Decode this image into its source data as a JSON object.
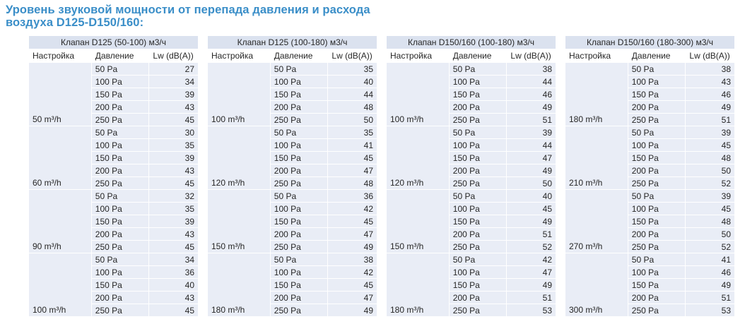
{
  "page": {
    "title_line1": "Уровень звуковой мощности от перепада давления и расхода",
    "title_line2": "воздуха D125-D150/160:"
  },
  "columns": {
    "setting": "Настройка",
    "pressure": "Давление",
    "lw": "Lw (dB(A))"
  },
  "pressures": [
    "50 Pa",
    "100 Pa",
    "150 Pa",
    "200 Pa",
    "250 Pa"
  ],
  "colors": {
    "title_text": "#3a8ec8",
    "table_header_bg": "#dbe2ef",
    "row_bg": "#e9edf6",
    "grid_lines": "#ffffff",
    "body_text": "#262626"
  },
  "tables": [
    {
      "title": "Клапан D125 (50-100) м3/ч",
      "groups": [
        {
          "setting": "50 m³/h",
          "lw": [
            27,
            34,
            39,
            43,
            45
          ]
        },
        {
          "setting": "60 m³/h",
          "lw": [
            30,
            35,
            39,
            43,
            45
          ]
        },
        {
          "setting": "90 m³/h",
          "lw": [
            32,
            35,
            39,
            43,
            45
          ]
        },
        {
          "setting": "100 m³/h",
          "lw": [
            34,
            36,
            40,
            43,
            45
          ]
        }
      ]
    },
    {
      "title": "Клапан D125 (100-180) м3/ч",
      "groups": [
        {
          "setting": "100 m³/h",
          "lw": [
            35,
            40,
            44,
            48,
            50
          ]
        },
        {
          "setting": "120 m³/h",
          "lw": [
            35,
            41,
            45,
            47,
            48
          ]
        },
        {
          "setting": "150 m³/h",
          "lw": [
            36,
            42,
            45,
            47,
            49
          ]
        },
        {
          "setting": "180 m³/h",
          "lw": [
            38,
            42,
            45,
            47,
            49
          ]
        }
      ]
    },
    {
      "title": "Клапан D150/160 (100-180) м3/ч",
      "groups": [
        {
          "setting": "100 m³/h",
          "lw": [
            38,
            44,
            46,
            49,
            51
          ]
        },
        {
          "setting": "120 m³/h",
          "lw": [
            39,
            44,
            47,
            49,
            50
          ]
        },
        {
          "setting": "150 m³/h",
          "lw": [
            40,
            45,
            49,
            51,
            52
          ]
        },
        {
          "setting": "180 m³/h",
          "lw": [
            42,
            47,
            49,
            51,
            53
          ]
        }
      ]
    },
    {
      "title": "Клапан D150/160 (180-300) м3/ч",
      "groups": [
        {
          "setting": "180 m³/h",
          "lw": [
            38,
            43,
            46,
            49,
            51
          ]
        },
        {
          "setting": "210 m³/h",
          "lw": [
            39,
            45,
            48,
            50,
            52
          ]
        },
        {
          "setting": "270 m³/h",
          "lw": [
            39,
            45,
            48,
            50,
            52
          ]
        },
        {
          "setting": "300 m³/h",
          "lw": [
            41,
            46,
            49,
            51,
            53
          ]
        }
      ]
    }
  ]
}
